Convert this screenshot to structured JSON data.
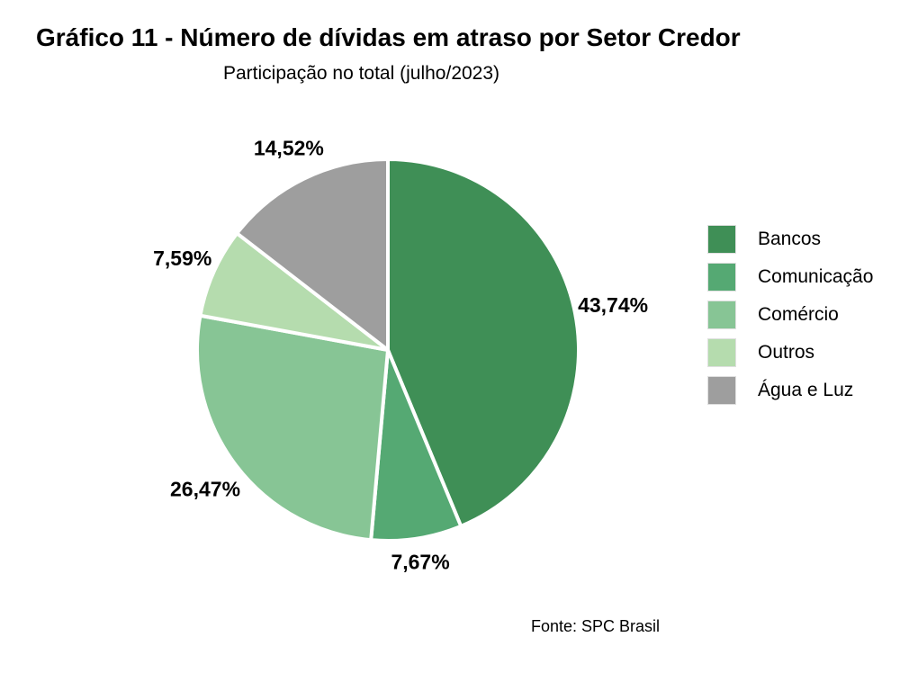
{
  "colors": {
    "Bancos": "#3f8f56",
    "Comunicacao": "#55a973",
    "Comercio": "#87c595",
    "Outros": "#b5dcae",
    "AguaELuz": "#9e9e9e",
    "separator": "#ffffff"
  },
  "chart_data": {
    "type": "pie",
    "title": "Gráfico 11 - Número de dívidas em atraso por Setor Credor",
    "subtitle": "Participação no total (julho/2023)",
    "legend_position": "right",
    "start_angle_deg": 0,
    "direction": "clockwise",
    "slices": [
      {
        "label": "Bancos",
        "value": 43.74,
        "display": "43,74%",
        "color_key": "Bancos"
      },
      {
        "label": "Comunicação",
        "value": 7.67,
        "display": "7,67%",
        "color_key": "Comunicacao"
      },
      {
        "label": "Comércio",
        "value": 26.47,
        "display": "26,47%",
        "color_key": "Comercio"
      },
      {
        "label": "Outros",
        "value": 7.59,
        "display": "7,59%",
        "color_key": "Outros"
      },
      {
        "label": "Água e Luz",
        "value": 14.52,
        "display": "14,52%",
        "color_key": "AguaELuz"
      }
    ]
  },
  "source": "Fonte: SPC Brasil"
}
